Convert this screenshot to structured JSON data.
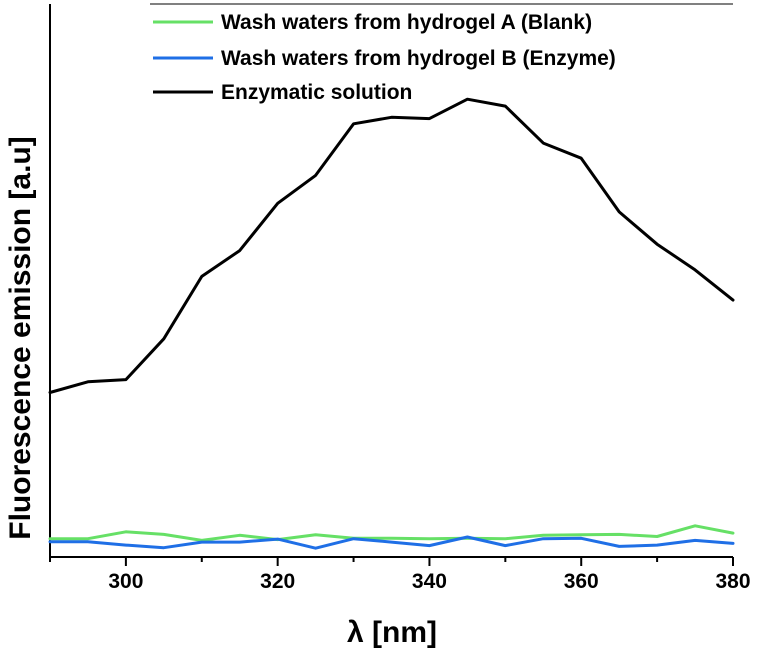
{
  "chart_data": {
    "type": "line",
    "xlabel": "λ [nm]",
    "ylabel": "Fluorescence emission [a.u]",
    "xlim": [
      290,
      380
    ],
    "ylim": [
      0,
      100
    ],
    "xticks": [
      300,
      320,
      340,
      360,
      380
    ],
    "y_tick_labels_shown": false,
    "grid": false,
    "legend_position": "top-left",
    "x": [
      290,
      295,
      300,
      305,
      310,
      315,
      320,
      325,
      330,
      335,
      340,
      345,
      350,
      355,
      360,
      365,
      370,
      375,
      380
    ],
    "series": [
      {
        "name": "Wash waters from hydrogel A (Blank)",
        "color": "#66e066",
        "values": [
          1.0,
          1.0,
          2.6,
          2.0,
          0.6,
          1.8,
          0.8,
          1.9,
          1.1,
          1.1,
          1.0,
          1.1,
          1.0,
          1.8,
          1.9,
          2.0,
          1.5,
          4.0,
          2.3
        ]
      },
      {
        "name": "Wash waters from hydrogel B (Enzyme)",
        "color": "#1f6fe6",
        "values": [
          0.3,
          0.3,
          -0.5,
          -1.1,
          0.2,
          0.2,
          0.9,
          -1.2,
          1.0,
          0.2,
          -0.6,
          1.4,
          -0.6,
          1.0,
          1.1,
          -0.8,
          -0.5,
          0.6,
          -0.1
        ]
      },
      {
        "name": "Enzymatic solution",
        "color": "#000000",
        "values": [
          35.0,
          37.5,
          38.0,
          47.5,
          62.0,
          68.0,
          79.0,
          85.5,
          97.5,
          99.0,
          98.7,
          103.2,
          101.6,
          93.0,
          89.5,
          77.0,
          69.5,
          63.5,
          56.5
        ]
      }
    ]
  }
}
